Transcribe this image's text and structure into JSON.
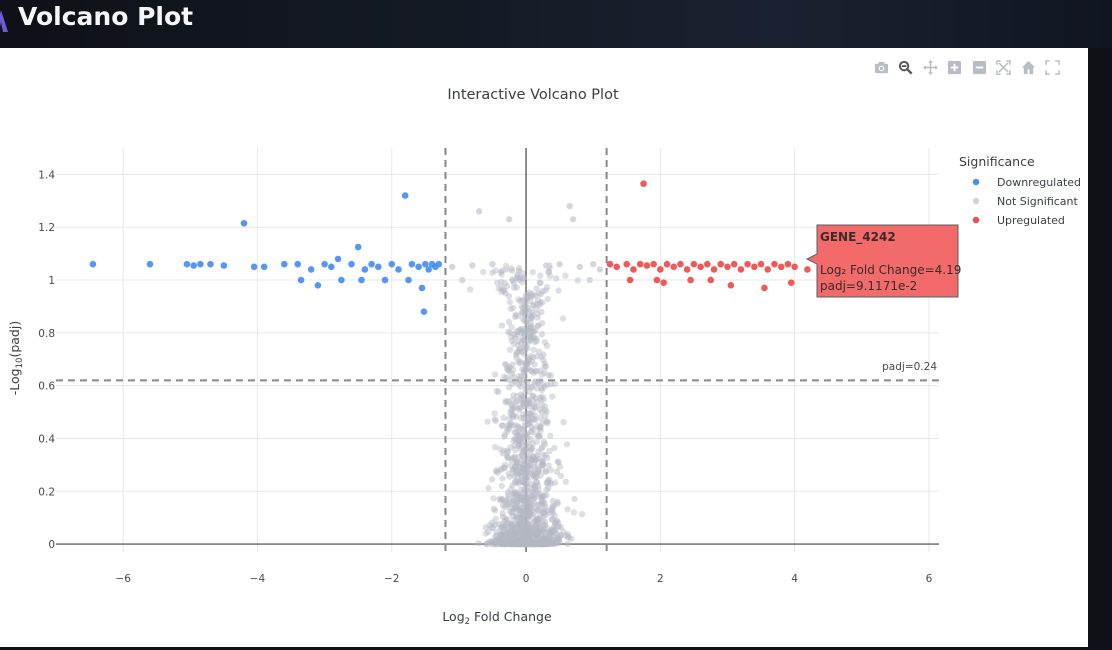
{
  "app": {
    "title": "Volcano Plot"
  },
  "modebar": {
    "icons": [
      "camera-icon",
      "zoom-icon",
      "pan-icon",
      "zoom-in-icon",
      "zoom-out-icon",
      "autoscale-icon",
      "home-icon",
      "fullscreen-icon"
    ]
  },
  "colors": {
    "down": "#4a8ef0",
    "ns": "#b4b9c3",
    "up": "#ee4b4b",
    "tooltip_bg": "#f26a6a"
  },
  "chart_data": {
    "type": "scatter",
    "title": "Interactive Volcano Plot",
    "xlabel_base": "Log",
    "xlabel_sub": "2",
    "xlabel_rest": " Fold Change",
    "ylabel_pre": "-Log",
    "ylabel_sub": "10",
    "ylabel_post": "(padj)",
    "xlim": [
      -7.0,
      6.15
    ],
    "ylim": [
      -0.03,
      1.5
    ],
    "xticks": [
      -6,
      -4,
      -2,
      0,
      2,
      4,
      6
    ],
    "xtick_labels": [
      "−6",
      "−4",
      "−2",
      "0",
      "2",
      "4",
      "6"
    ],
    "yticks": [
      0,
      0.2,
      0.4,
      0.6,
      0.8,
      1,
      1.2,
      1.4
    ],
    "ytick_labels": [
      "0",
      "0.2",
      "0.4",
      "0.6",
      "0.8",
      "1",
      "1.2",
      "1.4"
    ],
    "thresholds": {
      "lfc": 1.2,
      "padj_y": 0.62,
      "padj_label": "padj=0.24"
    },
    "legend": {
      "title": "Significance",
      "position": "right",
      "items": [
        {
          "name": "Downregulated",
          "color": "#4a8ef0"
        },
        {
          "name": "Not Significant",
          "color": "#cfd3da"
        },
        {
          "name": "Upregulated",
          "color": "#ee4b4b"
        }
      ]
    },
    "highlight": {
      "gene": "GENE_4242",
      "line1": "Log₂ Fold Change=4.19",
      "line2": "padj=9.1171e-2",
      "x": 4.19,
      "y": 1.04
    },
    "series": [
      {
        "name": "Downregulated",
        "color": "#4a8ef0",
        "points": [
          [
            -6.45,
            1.06
          ],
          [
            -5.6,
            1.06
          ],
          [
            -5.05,
            1.06
          ],
          [
            -4.95,
            1.055
          ],
          [
            -4.85,
            1.06
          ],
          [
            -4.7,
            1.06
          ],
          [
            -4.5,
            1.055
          ],
          [
            -4.2,
            1.215
          ],
          [
            -3.9,
            1.05
          ],
          [
            -3.6,
            1.06
          ],
          [
            -3.4,
            1.06
          ],
          [
            -3.2,
            1.04
          ],
          [
            -3.1,
            0.98
          ],
          [
            -3.0,
            1.06
          ],
          [
            -2.9,
            1.05
          ],
          [
            -2.8,
            1.08
          ],
          [
            -2.75,
            1.0
          ],
          [
            -2.6,
            1.06
          ],
          [
            -2.5,
            1.125
          ],
          [
            -2.4,
            1.04
          ],
          [
            -2.3,
            1.06
          ],
          [
            -2.2,
            1.05
          ],
          [
            -2.1,
            1.0
          ],
          [
            -2.0,
            1.06
          ],
          [
            -1.9,
            1.04
          ],
          [
            -1.8,
            1.32
          ],
          [
            -1.7,
            1.06
          ],
          [
            -1.6,
            1.05
          ],
          [
            -1.55,
            0.97
          ],
          [
            -1.5,
            1.06
          ],
          [
            -1.45,
            1.04
          ],
          [
            -1.4,
            1.06
          ],
          [
            -1.35,
            1.05
          ],
          [
            -1.3,
            1.06
          ],
          [
            -1.52,
            0.88
          ],
          [
            -1.75,
            1.0
          ],
          [
            -3.35,
            1.0
          ],
          [
            -4.05,
            1.05
          ],
          [
            -2.45,
            1.0
          ]
        ]
      },
      {
        "name": "Not Significant",
        "color": "#b4b9c3",
        "points": [
          [
            -0.7,
            1.26
          ],
          [
            -0.25,
            1.23
          ],
          [
            0.65,
            1.28
          ],
          [
            0.7,
            1.23
          ],
          [
            -1.1,
            1.05
          ],
          [
            -0.8,
            1.055
          ],
          [
            -0.5,
            1.06
          ],
          [
            -0.3,
            1.04
          ],
          [
            0.3,
            1.055
          ],
          [
            0.5,
            1.06
          ],
          [
            0.8,
            1.05
          ],
          [
            1.0,
            1.06
          ],
          [
            1.1,
            1.04
          ],
          [
            -0.95,
            1.0
          ],
          [
            0.95,
            1.0
          ]
        ],
        "core": {
          "n": 1300,
          "x_sd": 0.12,
          "y_max": 1.06
        }
      },
      {
        "name": "Upregulated",
        "color": "#ee4b4b",
        "points": [
          [
            1.75,
            1.365
          ],
          [
            1.25,
            1.06
          ],
          [
            1.35,
            1.05
          ],
          [
            1.5,
            1.06
          ],
          [
            1.6,
            1.04
          ],
          [
            1.7,
            1.06
          ],
          [
            1.8,
            1.055
          ],
          [
            1.9,
            1.06
          ],
          [
            2.0,
            1.04
          ],
          [
            2.1,
            1.06
          ],
          [
            2.2,
            1.05
          ],
          [
            2.3,
            1.06
          ],
          [
            2.4,
            1.04
          ],
          [
            2.5,
            1.06
          ],
          [
            2.6,
            1.05
          ],
          [
            2.7,
            1.06
          ],
          [
            2.8,
            1.04
          ],
          [
            2.9,
            1.06
          ],
          [
            3.0,
            1.05
          ],
          [
            3.1,
            1.06
          ],
          [
            3.2,
            1.04
          ],
          [
            3.3,
            1.06
          ],
          [
            3.4,
            1.05
          ],
          [
            3.5,
            1.06
          ],
          [
            3.6,
            1.04
          ],
          [
            3.7,
            1.06
          ],
          [
            3.8,
            1.05
          ],
          [
            3.9,
            1.06
          ],
          [
            4.0,
            1.05
          ],
          [
            4.19,
            1.04
          ],
          [
            1.55,
            1.0
          ],
          [
            2.05,
            0.99
          ],
          [
            2.45,
            1.0
          ],
          [
            3.05,
            0.98
          ],
          [
            3.55,
            0.97
          ],
          [
            3.95,
            0.99
          ],
          [
            2.75,
            1.0
          ],
          [
            1.95,
            1.0
          ]
        ]
      }
    ]
  }
}
